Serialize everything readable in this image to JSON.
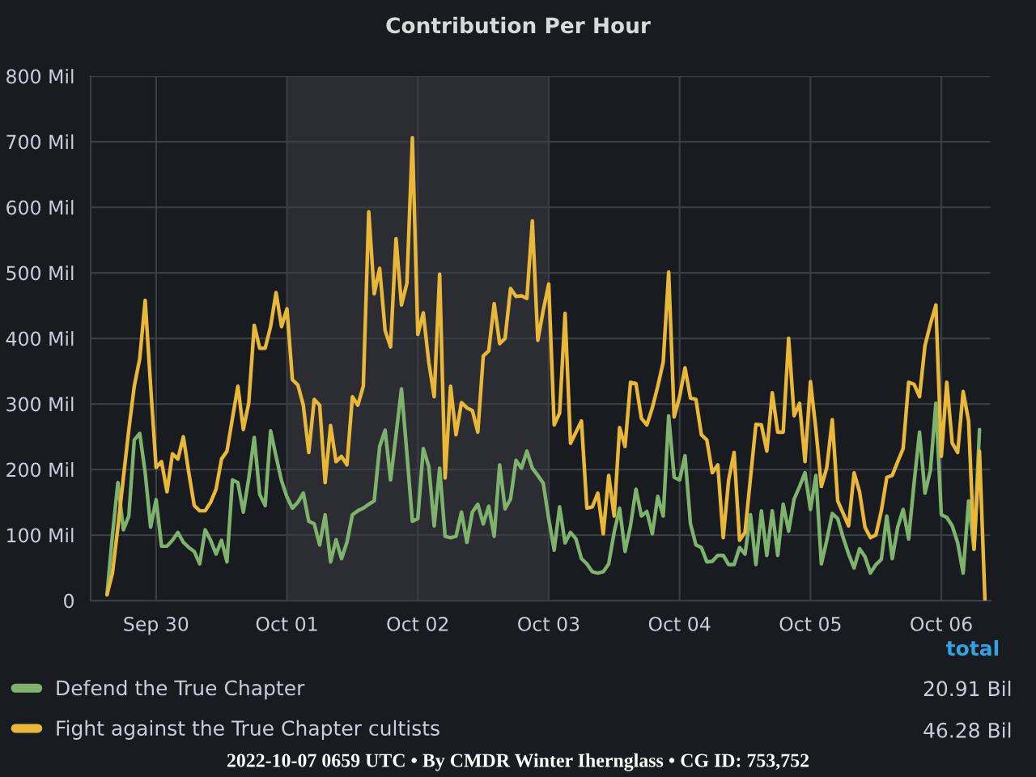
{
  "chart_data": {
    "type": "line",
    "title": "Contribution Per Hour",
    "x": [
      "2022-09-29T15:00",
      "2022-09-29T16:00",
      "2022-09-29T17:00",
      "2022-09-29T18:00",
      "2022-09-29T19:00",
      "2022-09-29T20:00",
      "2022-09-29T21:00",
      "2022-09-29T22:00",
      "2022-09-29T23:00",
      "2022-09-30T00:00",
      "2022-09-30T01:00",
      "2022-09-30T02:00",
      "2022-09-30T03:00",
      "2022-09-30T04:00",
      "2022-09-30T05:00",
      "2022-09-30T06:00",
      "2022-09-30T07:00",
      "2022-09-30T08:00",
      "2022-09-30T09:00",
      "2022-09-30T10:00",
      "2022-09-30T11:00",
      "2022-09-30T12:00",
      "2022-09-30T13:00",
      "2022-09-30T14:00",
      "2022-09-30T15:00",
      "2022-09-30T16:00",
      "2022-09-30T17:00",
      "2022-09-30T18:00",
      "2022-09-30T19:00",
      "2022-09-30T20:00",
      "2022-09-30T21:00",
      "2022-09-30T22:00",
      "2022-09-30T23:00",
      "2022-10-01T00:00",
      "2022-10-01T01:00",
      "2022-10-01T02:00",
      "2022-10-01T03:00",
      "2022-10-01T04:00",
      "2022-10-01T05:00",
      "2022-10-01T06:00",
      "2022-10-01T07:00",
      "2022-10-01T08:00",
      "2022-10-01T09:00",
      "2022-10-01T10:00",
      "2022-10-01T11:00",
      "2022-10-01T12:00",
      "2022-10-01T13:00",
      "2022-10-01T14:00",
      "2022-10-01T15:00",
      "2022-10-01T16:00",
      "2022-10-01T17:00",
      "2022-10-01T18:00",
      "2022-10-01T19:00",
      "2022-10-01T20:00",
      "2022-10-01T21:00",
      "2022-10-01T22:00",
      "2022-10-01T23:00",
      "2022-10-02T00:00",
      "2022-10-02T01:00",
      "2022-10-02T02:00",
      "2022-10-02T03:00",
      "2022-10-02T04:00",
      "2022-10-02T05:00",
      "2022-10-02T06:00",
      "2022-10-02T07:00",
      "2022-10-02T08:00",
      "2022-10-02T09:00",
      "2022-10-02T10:00",
      "2022-10-02T11:00",
      "2022-10-02T12:00",
      "2022-10-02T13:00",
      "2022-10-02T14:00",
      "2022-10-02T15:00",
      "2022-10-02T16:00",
      "2022-10-02T17:00",
      "2022-10-02T18:00",
      "2022-10-02T19:00",
      "2022-10-02T20:00",
      "2022-10-02T21:00",
      "2022-10-02T22:00",
      "2022-10-02T23:00",
      "2022-10-03T00:00",
      "2022-10-03T01:00",
      "2022-10-03T02:00",
      "2022-10-03T03:00",
      "2022-10-03T04:00",
      "2022-10-03T05:00",
      "2022-10-03T06:00",
      "2022-10-03T07:00",
      "2022-10-03T08:00",
      "2022-10-03T09:00",
      "2022-10-03T10:00",
      "2022-10-03T11:00",
      "2022-10-03T12:00",
      "2022-10-03T13:00",
      "2022-10-03T14:00",
      "2022-10-03T15:00",
      "2022-10-03T16:00",
      "2022-10-03T17:00",
      "2022-10-03T18:00",
      "2022-10-03T19:00",
      "2022-10-03T20:00",
      "2022-10-03T21:00",
      "2022-10-03T22:00",
      "2022-10-03T23:00",
      "2022-10-04T00:00",
      "2022-10-04T01:00",
      "2022-10-04T02:00",
      "2022-10-04T03:00",
      "2022-10-04T04:00",
      "2022-10-04T05:00",
      "2022-10-04T06:00",
      "2022-10-04T07:00",
      "2022-10-04T08:00",
      "2022-10-04T09:00",
      "2022-10-04T10:00",
      "2022-10-04T11:00",
      "2022-10-04T12:00",
      "2022-10-04T13:00",
      "2022-10-04T14:00",
      "2022-10-04T15:00",
      "2022-10-04T16:00",
      "2022-10-04T17:00",
      "2022-10-04T18:00",
      "2022-10-04T19:00",
      "2022-10-04T20:00",
      "2022-10-04T21:00",
      "2022-10-04T22:00",
      "2022-10-04T23:00",
      "2022-10-05T00:00",
      "2022-10-05T01:00",
      "2022-10-05T02:00",
      "2022-10-05T03:00",
      "2022-10-05T04:00",
      "2022-10-05T05:00",
      "2022-10-05T06:00",
      "2022-10-05T07:00",
      "2022-10-05T08:00",
      "2022-10-05T09:00",
      "2022-10-05T10:00",
      "2022-10-05T11:00",
      "2022-10-05T12:00",
      "2022-10-05T13:00",
      "2022-10-05T14:00",
      "2022-10-05T15:00",
      "2022-10-05T16:00",
      "2022-10-05T17:00",
      "2022-10-05T18:00",
      "2022-10-05T19:00",
      "2022-10-05T20:00",
      "2022-10-05T21:00",
      "2022-10-05T22:00",
      "2022-10-05T23:00",
      "2022-10-06T00:00",
      "2022-10-06T01:00",
      "2022-10-06T02:00",
      "2022-10-06T03:00",
      "2022-10-06T04:00",
      "2022-10-06T05:00",
      "2022-10-06T06:00",
      "2022-10-06T07:00",
      "2022-10-06T08:00"
    ],
    "series": [
      {
        "name": "Defend the True Chapter",
        "color": "#7eb26d",
        "values": [
          9,
          100,
          180,
          108,
          129,
          245,
          255,
          195,
          112,
          154,
          83,
          83,
          92,
          104,
          89,
          81,
          75,
          56,
          108,
          92,
          71,
          92,
          59,
          184,
          180,
          135,
          187,
          249,
          162,
          145,
          259,
          220,
          183,
          158,
          141,
          150,
          164,
          121,
          117,
          85,
          131,
          59,
          93,
          64,
          89,
          131,
          137,
          141,
          147,
          152,
          235,
          260,
          184,
          253,
          323,
          224,
          121,
          125,
          232,
          205,
          114,
          202,
          98,
          96,
          98,
          135,
          89,
          135,
          147,
          117,
          144,
          98,
          207,
          140,
          155,
          214,
          202,
          228,
          202,
          191,
          179,
          125,
          77,
          143,
          88,
          104,
          94,
          64,
          56,
          44,
          42,
          44,
          56,
          104,
          141,
          75,
          114,
          170,
          129,
          136,
          102,
          159,
          129,
          282,
          188,
          184,
          221,
          117,
          85,
          81,
          59,
          60,
          69,
          69,
          55,
          55,
          81,
          71,
          131,
          55,
          137,
          69,
          137,
          69,
          147,
          106,
          155,
          174,
          195,
          139,
          191,
          56,
          92,
          133,
          125,
          96,
          71,
          50,
          79,
          67,
          42,
          55,
          63,
          129,
          64,
          112,
          139,
          94,
          179,
          257,
          164,
          199,
          301,
          131,
          127,
          114,
          88,
          42,
          152,
          78,
          261,
          null
        ]
      },
      {
        "name": "Fight against the True Chapter cultists",
        "color": "#eab839",
        "values": [
          9,
          42,
          112,
          187,
          261,
          327,
          369,
          458,
          327,
          203,
          212,
          166,
          224,
          216,
          250,
          195,
          145,
          137,
          137,
          150,
          170,
          216,
          228,
          278,
          327,
          261,
          302,
          420,
          385,
          385,
          418,
          470,
          418,
          445,
          337,
          329,
          298,
          226,
          307,
          298,
          180,
          267,
          212,
          220,
          207,
          311,
          298,
          327,
          593,
          468,
          507,
          412,
          387,
          552,
          451,
          484,
          706,
          406,
          439,
          364,
          311,
          498,
          187,
          327,
          253,
          302,
          294,
          290,
          257,
          373,
          381,
          453,
          392,
          400,
          476,
          464,
          465,
          461,
          579,
          397,
          443,
          483,
          268,
          286,
          438,
          240,
          257,
          274,
          141,
          143,
          164,
          102,
          191,
          129,
          264,
          235,
          333,
          331,
          278,
          268,
          294,
          327,
          364,
          501,
          280,
          311,
          355,
          309,
          307,
          253,
          245,
          195,
          207,
          96,
          184,
          226,
          92,
          104,
          187,
          269,
          268,
          228,
          317,
          257,
          257,
          400,
          282,
          301,
          212,
          334,
          261,
          174,
          203,
          276,
          152,
          133,
          114,
          195,
          166,
          112,
          96,
          100,
          137,
          188,
          191,
          212,
          232,
          333,
          330,
          311,
          389,
          422,
          451,
          220,
          333,
          240,
          226,
          319,
          274,
          79,
          228,
          0
        ]
      }
    ],
    "xlim": [
      "2022-09-29T12:00",
      "2022-10-06T09:00"
    ],
    "xticks": [
      {
        "value": "2022-09-30",
        "label": "Sep 30"
      },
      {
        "value": "2022-10-01",
        "label": "Oct 01"
      },
      {
        "value": "2022-10-02",
        "label": "Oct 02"
      },
      {
        "value": "2022-10-03",
        "label": "Oct 03"
      },
      {
        "value": "2022-10-04",
        "label": "Oct 04"
      },
      {
        "value": "2022-10-05",
        "label": "Oct 05"
      },
      {
        "value": "2022-10-06",
        "label": "Oct 06"
      }
    ],
    "ylim": [
      0,
      800
    ],
    "yticks": [
      0,
      {
        "value": 100,
        "label": "100 Mil"
      },
      {
        "value": 200,
        "label": "200 Mil"
      },
      {
        "value": 300,
        "label": "300 Mil"
      },
      {
        "value": 400,
        "label": "400 Mil"
      },
      {
        "value": 500,
        "label": "500 Mil"
      },
      {
        "value": 600,
        "label": "600 Mil"
      },
      {
        "value": 700,
        "label": "700 Mil"
      },
      {
        "value": 800,
        "label": "800 Mil"
      }
    ],
    "bands": [
      {
        "axis": "x",
        "from": "2022-10-01",
        "to": "2022-10-03",
        "color": "#2b2d32"
      }
    ],
    "grid": true,
    "legend": "bottom",
    "line_style": "solid",
    "annotations": [
      "total",
      "20.91 Bil",
      "46.28 Bil",
      "2022-10-07 0659 UTC • By CMDR Winter Ihernglass • CG ID: 753,752"
    ]
  }
}
